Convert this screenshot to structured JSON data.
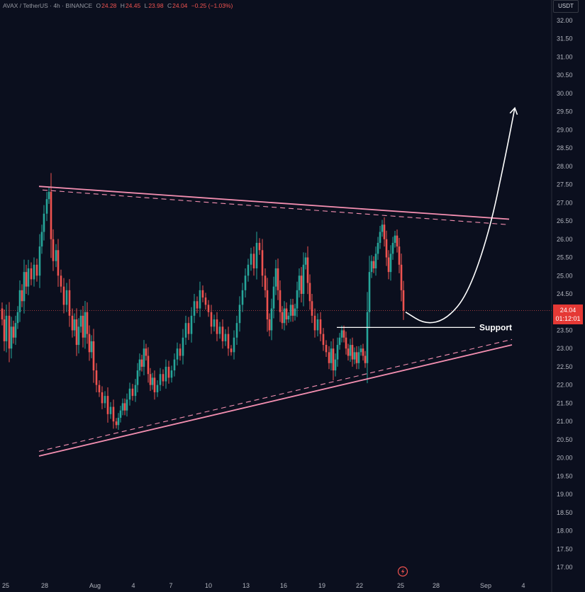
{
  "header": {
    "symbol": "AVAX / TetherUS · 4h · BINANCE",
    "o_label": "O",
    "o_value": "24.28",
    "h_label": "H",
    "h_value": "24.45",
    "l_label": "L",
    "l_value": "23.98",
    "c_label": "C",
    "c_value": "24.04",
    "change": "−0.25 (−1.03%)"
  },
  "currency_label": "USDT",
  "last_price": "24.04",
  "countdown": "01:12:01",
  "annotation_support": "Support",
  "colors": {
    "background": "#0b0f1e",
    "up": "#26a69a",
    "down": "#ef5350",
    "trendline": "#f48fb1",
    "tag": "#e53935"
  },
  "chart_data": {
    "type": "candlestick",
    "symbol": "AVAX / TetherUS",
    "interval": "4h",
    "exchange": "BINANCE",
    "ylim": [
      17.0,
      32.0
    ],
    "y_ticks": [
      "32.00",
      "31.50",
      "31.00",
      "30.50",
      "30.00",
      "29.50",
      "29.00",
      "28.50",
      "28.00",
      "27.50",
      "27.00",
      "26.50",
      "26.00",
      "25.50",
      "25.00",
      "24.50",
      "24.00",
      "23.50",
      "23.00",
      "22.50",
      "22.00",
      "21.50",
      "21.00",
      "20.50",
      "20.00",
      "19.50",
      "19.00",
      "18.50",
      "18.00",
      "17.50",
      "17.00"
    ],
    "x_ticks": [
      "25",
      "28",
      "Aug",
      "4",
      "7",
      "10",
      "13",
      "16",
      "19",
      "22",
      "25",
      "28",
      "Sep",
      "4"
    ],
    "price_path": [
      [
        0,
        24.1
      ],
      [
        3,
        23.8
      ],
      [
        6,
        23.2
      ],
      [
        9,
        23.9
      ],
      [
        13,
        23.0
      ],
      [
        16,
        23.6
      ],
      [
        19,
        23.3
      ],
      [
        22,
        23.7
      ],
      [
        25,
        24.0
      ],
      [
        28,
        24.6
      ],
      [
        31,
        24.3
      ],
      [
        34,
        25.1
      ],
      [
        37,
        24.7
      ],
      [
        40,
        25.2
      ],
      [
        44,
        24.9
      ],
      [
        48,
        25.3
      ],
      [
        52,
        25.0
      ],
      [
        56,
        25.8
      ],
      [
        59,
        26.2
      ],
      [
        62,
        26.7
      ],
      [
        66,
        27.1
      ],
      [
        69,
        27.3
      ],
      [
        72,
        26.0
      ],
      [
        75,
        25.4
      ],
      [
        79,
        25.7
      ],
      [
        82,
        25.0
      ],
      [
        86,
        24.7
      ],
      [
        90,
        24.2
      ],
      [
        94,
        24.6
      ],
      [
        98,
        23.9
      ],
      [
        102,
        23.5
      ],
      [
        105,
        23.8
      ],
      [
        108,
        23.1
      ],
      [
        111,
        23.6
      ],
      [
        114,
        23.9
      ],
      [
        117,
        23.3
      ],
      [
        120,
        24.0
      ],
      [
        123,
        23.4
      ],
      [
        126,
        22.9
      ],
      [
        129,
        23.2
      ],
      [
        132,
        22.4
      ],
      [
        136,
        22.0
      ],
      [
        140,
        21.8
      ],
      [
        144,
        21.5
      ],
      [
        148,
        21.7
      ],
      [
        152,
        21.2
      ],
      [
        156,
        21.4
      ],
      [
        160,
        21.0
      ],
      [
        164,
        20.9
      ],
      [
        167,
        21.1
      ],
      [
        170,
        21.3
      ],
      [
        173,
        21.5
      ],
      [
        176,
        21.3
      ],
      [
        179,
        21.6
      ],
      [
        183,
        21.9
      ],
      [
        187,
        21.7
      ],
      [
        191,
        22.0
      ],
      [
        194,
        22.4
      ],
      [
        197,
        22.7
      ],
      [
        200,
        22.5
      ],
      [
        203,
        23.0
      ],
      [
        206,
        22.8
      ],
      [
        209,
        22.3
      ],
      [
        212,
        22.0
      ],
      [
        215,
        22.2
      ],
      [
        218,
        21.8
      ],
      [
        222,
        22.0
      ],
      [
        226,
        22.3
      ],
      [
        230,
        22.1
      ],
      [
        234,
        22.5
      ],
      [
        238,
        22.2
      ],
      [
        242,
        22.4
      ],
      [
        246,
        22.7
      ],
      [
        250,
        23.0
      ],
      [
        254,
        22.8
      ],
      [
        258,
        23.3
      ],
      [
        262,
        23.7
      ],
      [
        266,
        23.4
      ],
      [
        270,
        23.9
      ],
      [
        274,
        24.3
      ],
      [
        278,
        24.1
      ],
      [
        282,
        24.6
      ],
      [
        286,
        24.4
      ],
      [
        290,
        24.2
      ],
      [
        294,
        24.0
      ],
      [
        298,
        23.6
      ],
      [
        302,
        23.8
      ],
      [
        306,
        23.4
      ],
      [
        310,
        23.6
      ],
      [
        314,
        23.2
      ],
      [
        318,
        23.4
      ],
      [
        322,
        23.0
      ],
      [
        326,
        22.9
      ],
      [
        330,
        23.3
      ],
      [
        334,
        23.7
      ],
      [
        338,
        24.2
      ],
      [
        342,
        24.6
      ],
      [
        346,
        25.0
      ],
      [
        350,
        25.3
      ],
      [
        354,
        25.6
      ],
      [
        358,
        25.2
      ],
      [
        362,
        25.9
      ],
      [
        366,
        25.7
      ],
      [
        370,
        25.0
      ],
      [
        374,
        24.6
      ],
      [
        377,
        23.8
      ],
      [
        380,
        23.5
      ],
      [
        383,
        24.1
      ],
      [
        386,
        24.7
      ],
      [
        389,
        25.2
      ],
      [
        392,
        24.6
      ],
      [
        395,
        24.0
      ],
      [
        398,
        23.7
      ],
      [
        401,
        24.1
      ],
      [
        404,
        23.8
      ],
      [
        407,
        23.9
      ],
      [
        410,
        24.2
      ],
      [
        413,
        23.9
      ],
      [
        416,
        24.1
      ],
      [
        419,
        24.6
      ],
      [
        422,
        25.0
      ],
      [
        425,
        24.5
      ],
      [
        428,
        25.3
      ],
      [
        431,
        25.5
      ],
      [
        434,
        24.8
      ],
      [
        437,
        24.3
      ],
      [
        440,
        23.9
      ],
      [
        444,
        23.5
      ],
      [
        448,
        23.8
      ],
      [
        452,
        23.4
      ],
      [
        456,
        23.1
      ],
      [
        460,
        22.9
      ],
      [
        464,
        22.6
      ],
      [
        467,
        23.0
      ],
      [
        470,
        22.4
      ],
      [
        473,
        22.7
      ],
      [
        476,
        23.1
      ],
      [
        479,
        23.3
      ],
      [
        482,
        23.5
      ],
      [
        485,
        23.3
      ],
      [
        488,
        23.0
      ],
      [
        491,
        22.8
      ],
      [
        494,
        23.1
      ],
      [
        497,
        22.7
      ],
      [
        500,
        22.9
      ],
      [
        503,
        22.6
      ],
      [
        506,
        22.9
      ],
      [
        509,
        23.0
      ],
      [
        512,
        22.8
      ],
      [
        515,
        22.6
      ],
      [
        518,
        24.0
      ],
      [
        521,
        25.1
      ],
      [
        524,
        25.4
      ],
      [
        527,
        25.2
      ],
      [
        530,
        25.6
      ],
      [
        533,
        25.9
      ],
      [
        536,
        26.2
      ],
      [
        539,
        26.4
      ],
      [
        542,
        26.0
      ],
      [
        545,
        25.5
      ],
      [
        548,
        25.1
      ],
      [
        551,
        25.6
      ],
      [
        554,
        25.9
      ],
      [
        557,
        26.1
      ],
      [
        560,
        25.8
      ],
      [
        563,
        25.3
      ],
      [
        566,
        24.6
      ],
      [
        569,
        24.04
      ]
    ],
    "lines": [
      {
        "kind": "resistance",
        "style": "solid",
        "from": [
          55,
          27.45
        ],
        "to": [
          718,
          26.55
        ]
      },
      {
        "kind": "resistance",
        "style": "dashed",
        "from": [
          60,
          27.35
        ],
        "to": [
          716,
          26.4
        ]
      },
      {
        "kind": "support",
        "style": "solid",
        "from": [
          55,
          20.05
        ],
        "to": [
          722,
          23.1
        ]
      },
      {
        "kind": "support",
        "style": "dashed",
        "from": [
          55,
          20.18
        ],
        "to": [
          722,
          23.25
        ]
      },
      {
        "kind": "horizontal",
        "style": "solid",
        "from": [
          475,
          23.58
        ],
        "to": [
          670,
          23.58
        ]
      }
    ],
    "projection": [
      [
        572,
        24.0
      ],
      [
        600,
        23.66
      ],
      [
        630,
        23.8
      ],
      [
        660,
        24.5
      ],
      [
        690,
        26.2
      ],
      [
        712,
        28.2
      ],
      [
        726,
        29.6
      ]
    ],
    "annotations": [
      "Support"
    ]
  }
}
